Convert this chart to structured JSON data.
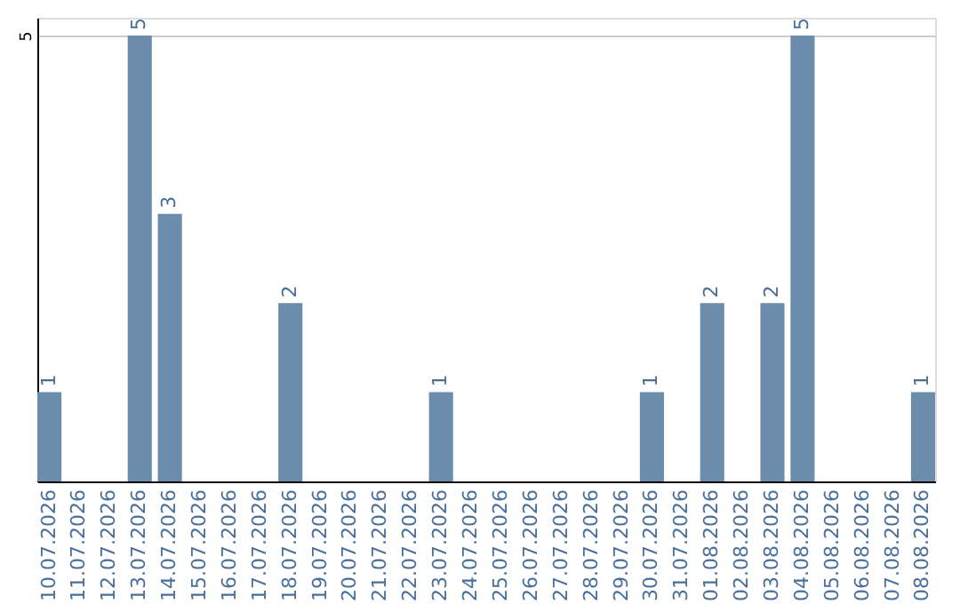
{
  "chart_data": {
    "type": "bar",
    "categories": [
      "10.07.2026",
      "11.07.2026",
      "12.07.2026",
      "13.07.2026",
      "14.07.2026",
      "15.07.2026",
      "16.07.2026",
      "17.07.2026",
      "18.07.2026",
      "19.07.2026",
      "20.07.2026",
      "21.07.2026",
      "22.07.2026",
      "23.07.2026",
      "24.07.2026",
      "25.07.2026",
      "26.07.2026",
      "27.07.2026",
      "28.07.2026",
      "29.07.2026",
      "30.07.2026",
      "31.07.2026",
      "01.08.2026",
      "02.08.2026",
      "03.08.2026",
      "04.08.2026",
      "05.08.2026",
      "06.08.2026",
      "07.08.2026",
      "08.08.2026"
    ],
    "values": [
      1,
      0,
      0,
      5,
      3,
      0,
      0,
      0,
      2,
      0,
      0,
      0,
      0,
      1,
      0,
      0,
      0,
      0,
      0,
      0,
      1,
      0,
      2,
      0,
      2,
      5,
      0,
      0,
      0,
      1
    ],
    "value_labels": [
      "1",
      null,
      null,
      "5",
      "3",
      null,
      null,
      null,
      "2",
      null,
      null,
      null,
      null,
      "1",
      null,
      null,
      null,
      null,
      null,
      null,
      "1",
      null,
      "2",
      null,
      "2",
      "5",
      null,
      null,
      null,
      "1"
    ],
    "color": "#6b8cab",
    "ylim": [
      0,
      5.2
    ],
    "yticks": [
      5
    ],
    "grid": "y"
  }
}
